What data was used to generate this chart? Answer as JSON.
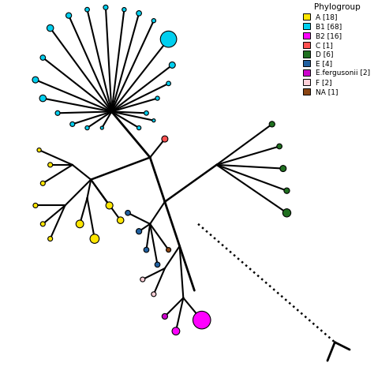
{
  "colors": {
    "A": "#FFE600",
    "B1": "#00CFEF",
    "B2": "#FF00FF",
    "C": "#FF5050",
    "D": "#207020",
    "E": "#2060A0",
    "E_fergusonii": "#CC00CC",
    "F": "#FFD0D8",
    "NA": "#8B4513"
  },
  "legend_labels": [
    "A [18]",
    "B1 [68]",
    "B2 [16]",
    "C [1]",
    "D [6]",
    "E [4]",
    "E.fergusonii [2]",
    "F [2]",
    "NA [1]"
  ],
  "legend_colors": [
    "#FFE600",
    "#00CFEF",
    "#FF00FF",
    "#FF5050",
    "#207020",
    "#2060A0",
    "#CC00CC",
    "#FFD0D8",
    "#8B4513"
  ],
  "background": "#FFFFFF",
  "title": "Phylogroup"
}
